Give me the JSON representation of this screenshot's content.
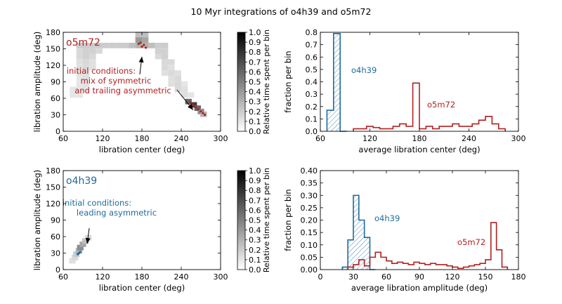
{
  "figure": {
    "title": "10 Myr integrations of o4h39 and o5m72"
  },
  "colors": {
    "o4h39": "#1f6b9a",
    "o5m72": "#b22020",
    "axis": "#000000",
    "density": "#d6d6d6"
  },
  "chart_data": [
    {
      "type": "heatmap",
      "panel": "top-left",
      "title": "o5m72",
      "xlabel": "libration center (deg)",
      "ylabel": "libration amplitude (deg)",
      "xlim": [
        60,
        300
      ],
      "ylim": [
        0,
        180
      ],
      "xticks": [
        "60",
        "120",
        "180",
        "240",
        "300"
      ],
      "yticks": [
        "0",
        "30",
        "60",
        "90",
        "120",
        "150",
        "180"
      ],
      "colorbar": {
        "label": "Relative time spent per bin",
        "ticks": [
          "0.0",
          "0.1",
          "0.2",
          "0.3",
          "0.4",
          "0.5",
          "0.6",
          "0.7",
          "0.8",
          "0.9",
          "1.0"
        ],
        "range": [
          0,
          1
        ]
      },
      "annotation": {
        "lines": [
          "initial conditions:",
          "mix of symmetric",
          "and trailing asymmetric"
        ],
        "arrow_targets": [
          [
            180,
            156
          ],
          [
            258,
            44
          ]
        ]
      },
      "density_cells": [
        [
          85,
          156,
          0.2
        ],
        [
          95,
          156,
          0.2
        ],
        [
          105,
          156,
          0.2
        ],
        [
          115,
          156,
          0.2
        ],
        [
          125,
          156,
          0.2
        ],
        [
          135,
          156,
          0.2
        ],
        [
          145,
          156,
          0.2
        ],
        [
          155,
          156,
          0.2
        ],
        [
          165,
          156,
          0.25
        ],
        [
          175,
          156,
          0.3
        ],
        [
          185,
          156,
          0.3
        ],
        [
          195,
          156,
          0.25
        ],
        [
          205,
          156,
          0.2
        ],
        [
          215,
          156,
          0.2
        ],
        [
          85,
          146,
          0.15
        ],
        [
          95,
          146,
          0.18
        ],
        [
          105,
          146,
          0.18
        ],
        [
          115,
          146,
          0.15
        ],
        [
          205,
          146,
          0.18
        ],
        [
          215,
          146,
          0.18
        ],
        [
          85,
          136,
          0.15
        ],
        [
          95,
          136,
          0.18
        ],
        [
          105,
          136,
          0.15
        ],
        [
          205,
          136,
          0.15
        ],
        [
          215,
          136,
          0.18
        ],
        [
          85,
          126,
          0.12
        ],
        [
          95,
          126,
          0.15
        ],
        [
          105,
          126,
          0.12
        ],
        [
          215,
          126,
          0.15
        ],
        [
          225,
          126,
          0.15
        ],
        [
          85,
          116,
          0.12
        ],
        [
          95,
          116,
          0.15
        ],
        [
          105,
          116,
          0.12
        ],
        [
          215,
          116,
          0.15
        ],
        [
          225,
          116,
          0.12
        ],
        [
          85,
          106,
          0.12
        ],
        [
          95,
          106,
          0.12
        ],
        [
          215,
          106,
          0.12
        ],
        [
          225,
          106,
          0.15
        ],
        [
          235,
          106,
          0.12
        ],
        [
          85,
          96,
          0.1
        ],
        [
          95,
          96,
          0.12
        ],
        [
          225,
          96,
          0.12
        ],
        [
          235,
          96,
          0.15
        ],
        [
          85,
          86,
          0.1
        ],
        [
          95,
          86,
          0.12
        ],
        [
          225,
          86,
          0.12
        ],
        [
          235,
          86,
          0.15
        ],
        [
          245,
          86,
          0.1
        ],
        [
          75,
          76,
          0.1
        ],
        [
          85,
          76,
          0.1
        ],
        [
          95,
          76,
          0.1
        ],
        [
          235,
          76,
          0.15
        ],
        [
          245,
          76,
          0.12
        ],
        [
          75,
          66,
          0.1
        ],
        [
          85,
          66,
          0.1
        ],
        [
          245,
          66,
          0.12
        ],
        [
          255,
          66,
          0.1
        ],
        [
          175,
          166,
          0.4
        ],
        [
          185,
          166,
          0.35
        ],
        [
          175,
          176,
          0.25
        ],
        [
          185,
          176,
          0.25
        ],
        [
          251,
          54,
          0.6
        ],
        [
          259,
          48,
          0.75
        ],
        [
          265,
          42,
          0.6
        ],
        [
          270,
          36,
          0.45
        ],
        [
          274,
          31,
          0.3
        ]
      ],
      "initial_conditions": [
        [
          175,
          159
        ],
        [
          180,
          154
        ],
        [
          183,
          157
        ],
        [
          186,
          152
        ],
        [
          178,
          161
        ],
        [
          254,
          52
        ],
        [
          258,
          48
        ],
        [
          262,
          44
        ],
        [
          266,
          40
        ],
        [
          270,
          36
        ],
        [
          273,
          33
        ],
        [
          276,
          30
        ]
      ]
    },
    {
      "type": "bar",
      "panel": "top-right",
      "xlabel": "average libration center (deg)",
      "ylabel": "fraction per bin",
      "xlim": [
        60,
        300
      ],
      "ylim": [
        0,
        0.8
      ],
      "xticks": [
        "60",
        "120",
        "180",
        "240",
        "300"
      ],
      "yticks": [
        "0.0",
        "0.1",
        "0.2",
        "0.3",
        "0.4",
        "0.5",
        "0.6",
        "0.7",
        "0.8"
      ],
      "bin_width": 8,
      "series": [
        {
          "name": "o4h39",
          "style": "step-hatched",
          "bins": [
            [
              68,
              0.17
            ],
            [
              76,
              0.79
            ],
            [
              84,
              0.0
            ]
          ]
        },
        {
          "name": "o5m72",
          "style": "step",
          "bins": [
            [
              100,
              0.02
            ],
            [
              108,
              0.02
            ],
            [
              116,
              0.04
            ],
            [
              124,
              0.03
            ],
            [
              132,
              0.02
            ],
            [
              140,
              0.02
            ],
            [
              148,
              0.04
            ],
            [
              156,
              0.06
            ],
            [
              164,
              0.04
            ],
            [
              172,
              0.39
            ],
            [
              180,
              0.02
            ],
            [
              188,
              0.04
            ],
            [
              196,
              0.02
            ],
            [
              204,
              0.04
            ],
            [
              212,
              0.04
            ],
            [
              220,
              0.06
            ],
            [
              228,
              0.04
            ],
            [
              236,
              0.04
            ],
            [
              244,
              0.06
            ],
            [
              252,
              0.09
            ],
            [
              260,
              0.12
            ],
            [
              268,
              0.06
            ],
            [
              276,
              0.02
            ]
          ]
        }
      ]
    },
    {
      "type": "heatmap",
      "panel": "bottom-left",
      "title": "o4h39",
      "xlabel": "libration center (deg)",
      "ylabel": "libration amplitude (deg)",
      "xlim": [
        60,
        300
      ],
      "ylim": [
        0,
        180
      ],
      "xticks": [
        "60",
        "120",
        "180",
        "240",
        "300"
      ],
      "yticks": [
        "0",
        "30",
        "60",
        "90",
        "120",
        "150",
        "180"
      ],
      "colorbar": {
        "label": "Relative time spent per bin",
        "ticks": [
          "0.0",
          "0.1",
          "0.2",
          "0.3",
          "0.4",
          "0.5",
          "0.6",
          "0.7",
          "0.8",
          "0.9",
          "1.0"
        ],
        "range": [
          0,
          1
        ]
      },
      "annotation": {
        "lines": [
          "initial conditions:",
          "leading asymmetric"
        ],
        "arrow_targets": [
          [
            88,
            42
          ]
        ]
      },
      "density_cells": [
        [
          74,
          16,
          0.12
        ],
        [
          78,
          22,
          0.15
        ],
        [
          80,
          28,
          0.2
        ],
        [
          84,
          34,
          0.3
        ],
        [
          86,
          40,
          0.45
        ],
        [
          90,
          46,
          0.35
        ],
        [
          94,
          52,
          0.25
        ],
        [
          98,
          58,
          0.15
        ]
      ],
      "initial_conditions": [
        [
          82,
          28
        ],
        [
          84,
          30
        ],
        [
          86,
          32
        ]
      ]
    },
    {
      "type": "bar",
      "panel": "bottom-right",
      "xlabel": "average libration amplitude (deg)",
      "ylabel": "fraction per bin",
      "xlim": [
        0,
        180
      ],
      "ylim": [
        0,
        0.4
      ],
      "xticks": [
        "0",
        "30",
        "60",
        "90",
        "120",
        "150",
        "180"
      ],
      "yticks": [
        "0.00",
        "0.05",
        "0.10",
        "0.15",
        "0.20",
        "0.25",
        "0.30",
        "0.35",
        "0.40"
      ],
      "bin_width": 5,
      "series": [
        {
          "name": "o4h39",
          "style": "step-hatched",
          "bins": [
            [
              20,
              0.01
            ],
            [
              25,
              0.12
            ],
            [
              30,
              0.3
            ],
            [
              35,
              0.2
            ],
            [
              40,
              0.13
            ],
            [
              45,
              0.0
            ]
          ]
        },
        {
          "name": "o5m72",
          "style": "step",
          "bins": [
            [
              25,
              0.01
            ],
            [
              30,
              0.02
            ],
            [
              35,
              0.04
            ],
            [
              40,
              0.015
            ],
            [
              45,
              0.05
            ],
            [
              50,
              0.07
            ],
            [
              55,
              0.05
            ],
            [
              60,
              0.035
            ],
            [
              65,
              0.025
            ],
            [
              70,
              0.03
            ],
            [
              75,
              0.025
            ],
            [
              80,
              0.02
            ],
            [
              85,
              0.03
            ],
            [
              90,
              0.025
            ],
            [
              95,
              0.02
            ],
            [
              100,
              0.025
            ],
            [
              105,
              0.02
            ],
            [
              110,
              0.02
            ],
            [
              115,
              0.015
            ],
            [
              120,
              0.01
            ],
            [
              125,
              0.005
            ],
            [
              130,
              0.01
            ],
            [
              135,
              0.015
            ],
            [
              140,
              0.02
            ],
            [
              145,
              0.025
            ],
            [
              150,
              0.04
            ],
            [
              155,
              0.19
            ],
            [
              160,
              0.08
            ],
            [
              165,
              0.01
            ]
          ]
        }
      ]
    }
  ]
}
